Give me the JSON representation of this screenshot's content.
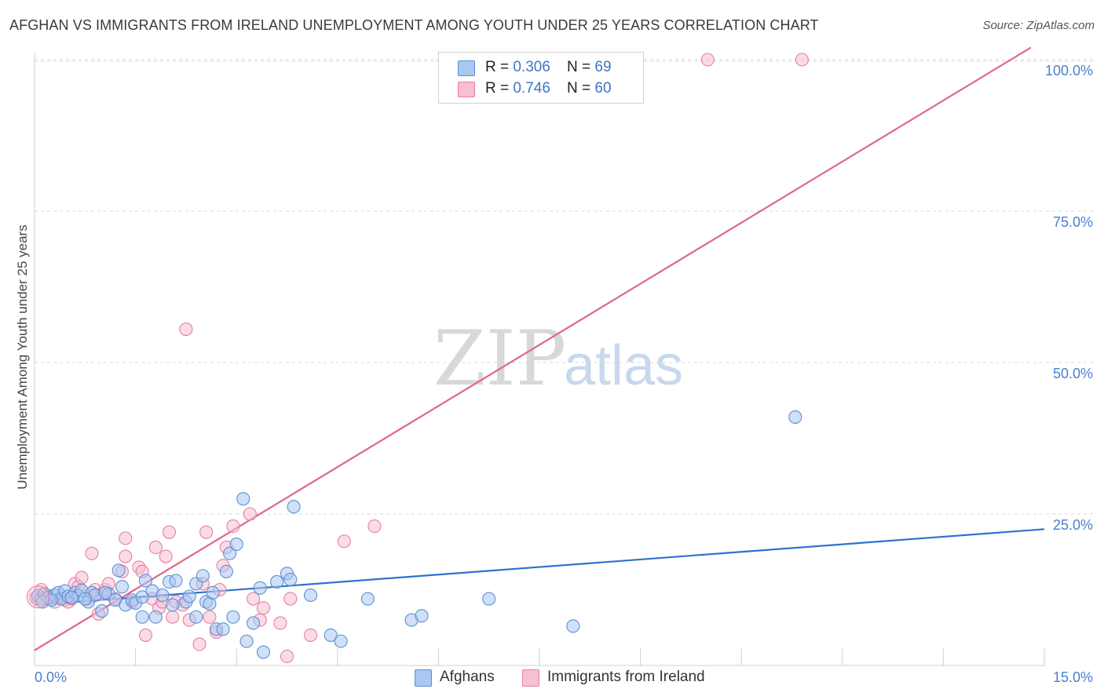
{
  "title": "AFGHAN VS IMMIGRANTS FROM IRELAND UNEMPLOYMENT AMONG YOUTH UNDER 25 YEARS CORRELATION CHART",
  "source": "Source: ZipAtlas.com",
  "watermark": {
    "part1": "ZIP",
    "part2": "atlas"
  },
  "legend": {
    "afghans": {
      "r_label": "R = ",
      "r_value": "0.306",
      "n_label": "N = ",
      "n_value": "69"
    },
    "ireland": {
      "r_label": "R = ",
      "r_value": "0.746",
      "n_label": "N = ",
      "n_value": "60"
    }
  },
  "bottom_legend": {
    "afghans": "Afghans",
    "ireland": "Immigrants from Ireland"
  },
  "colors": {
    "afghans_fill": "#a9c7f0",
    "afghans_stroke": "#5b8fd6",
    "afghans_line": "#2e72cf",
    "ireland_fill": "#f6bfd2",
    "ireland_stroke": "#e57fa3",
    "ireland_line": "#e0678f",
    "grid": "#d9d9d9",
    "tick_label": "#4a7fd0"
  },
  "chart_data": {
    "type": "scatter",
    "title": "AFGHAN VS IMMIGRANTS FROM IRELAND UNEMPLOYMENT AMONG YOUTH UNDER 25 YEARS CORRELATION CHART",
    "xlabel": "",
    "ylabel": "Unemployment Among Youth under 25 years",
    "xlim": [
      0,
      15
    ],
    "ylim": [
      0,
      102
    ],
    "x_tick_labels": [
      "0.0%",
      "15.0%"
    ],
    "y_ticks": [
      25,
      50,
      75,
      100
    ],
    "y_tick_labels": [
      "25.0%",
      "50.0%",
      "75.0%",
      "100.0%"
    ],
    "grid": true,
    "series": [
      {
        "name": "Afghans",
        "r": 0.306,
        "n": 69,
        "trend": {
          "x": [
            0,
            15
          ],
          "y": [
            10.0,
            22.5
          ]
        },
        "points": [
          [
            0.05,
            11.5
          ],
          [
            0.1,
            11.0
          ],
          [
            0.15,
            11.8
          ],
          [
            0.2,
            11.2
          ],
          [
            0.3,
            11.6
          ],
          [
            0.35,
            12.0
          ],
          [
            0.4,
            11.0
          ],
          [
            0.45,
            12.3
          ],
          [
            0.5,
            11.4
          ],
          [
            0.6,
            12.0
          ],
          [
            0.65,
            11.5
          ],
          [
            0.7,
            12.4
          ],
          [
            0.8,
            10.5
          ],
          [
            0.85,
            12.0
          ],
          [
            0.9,
            11.6
          ],
          [
            1.0,
            9.0
          ],
          [
            1.1,
            11.8
          ],
          [
            1.2,
            10.8
          ],
          [
            1.25,
            15.7
          ],
          [
            1.3,
            13.0
          ],
          [
            1.35,
            10.0
          ],
          [
            1.45,
            10.8
          ],
          [
            1.5,
            10.3
          ],
          [
            1.6,
            11.3
          ],
          [
            1.65,
            14.0
          ],
          [
            1.6,
            8.0
          ],
          [
            1.75,
            12.3
          ],
          [
            1.8,
            8.0
          ],
          [
            1.9,
            11.6
          ],
          [
            2.0,
            13.8
          ],
          [
            2.05,
            10.0
          ],
          [
            2.1,
            14.0
          ],
          [
            2.25,
            10.5
          ],
          [
            2.3,
            11.4
          ],
          [
            2.4,
            13.5
          ],
          [
            2.4,
            8.0
          ],
          [
            2.5,
            14.8
          ],
          [
            2.55,
            10.5
          ],
          [
            2.6,
            10.2
          ],
          [
            2.65,
            12.0
          ],
          [
            2.7,
            6.0
          ],
          [
            2.8,
            6.0
          ],
          [
            2.85,
            15.5
          ],
          [
            2.9,
            18.5
          ],
          [
            3.0,
            20.0
          ],
          [
            2.95,
            8.0
          ],
          [
            3.1,
            27.5
          ],
          [
            3.15,
            4.0
          ],
          [
            3.25,
            7.0
          ],
          [
            3.35,
            12.8
          ],
          [
            3.4,
            2.2
          ],
          [
            3.6,
            13.8
          ],
          [
            3.75,
            15.2
          ],
          [
            3.8,
            14.2
          ],
          [
            3.85,
            26.2
          ],
          [
            4.1,
            11.6
          ],
          [
            4.4,
            5.0
          ],
          [
            4.55,
            4.0
          ],
          [
            4.95,
            11.0
          ],
          [
            5.6,
            7.5
          ],
          [
            5.75,
            8.2
          ],
          [
            6.75,
            11.0
          ],
          [
            8.0,
            6.5
          ],
          [
            11.3,
            41.0
          ],
          [
            0.12,
            10.5
          ],
          [
            0.25,
            10.8
          ],
          [
            0.55,
            11.2
          ],
          [
            0.75,
            11.0
          ],
          [
            1.05,
            12.0
          ]
        ]
      },
      {
        "name": "Immigrants from Ireland",
        "r": 0.746,
        "n": 60,
        "trend": {
          "x": [
            0,
            14.8
          ],
          "y": [
            2.5,
            102
          ]
        },
        "points": [
          [
            0.05,
            11.0
          ],
          [
            0.1,
            12.5
          ],
          [
            0.15,
            11.0
          ],
          [
            0.2,
            11.5
          ],
          [
            0.3,
            10.5
          ],
          [
            0.4,
            11.5
          ],
          [
            0.45,
            10.8
          ],
          [
            0.5,
            10.5
          ],
          [
            0.55,
            11.0
          ],
          [
            0.6,
            13.5
          ],
          [
            0.65,
            13.0
          ],
          [
            0.7,
            14.5
          ],
          [
            0.8,
            11.0
          ],
          [
            0.85,
            18.5
          ],
          [
            0.9,
            12.5
          ],
          [
            0.95,
            8.5
          ],
          [
            1.0,
            11.8
          ],
          [
            1.05,
            12.5
          ],
          [
            1.1,
            13.5
          ],
          [
            1.2,
            11.0
          ],
          [
            1.3,
            15.5
          ],
          [
            1.35,
            18.0
          ],
          [
            1.35,
            21.0
          ],
          [
            1.45,
            10.5
          ],
          [
            1.55,
            16.2
          ],
          [
            1.6,
            15.5
          ],
          [
            1.65,
            5.0
          ],
          [
            1.75,
            11.0
          ],
          [
            1.8,
            19.5
          ],
          [
            1.85,
            9.5
          ],
          [
            1.9,
            10.5
          ],
          [
            1.95,
            18.0
          ],
          [
            2.0,
            22.0
          ],
          [
            2.05,
            8.0
          ],
          [
            2.1,
            10.5
          ],
          [
            2.2,
            10.0
          ],
          [
            2.3,
            7.5
          ],
          [
            2.45,
            3.5
          ],
          [
            2.5,
            13.5
          ],
          [
            2.55,
            22.0
          ],
          [
            2.6,
            8.0
          ],
          [
            2.7,
            5.5
          ],
          [
            2.75,
            12.5
          ],
          [
            2.8,
            16.5
          ],
          [
            2.85,
            19.5
          ],
          [
            2.95,
            23.0
          ],
          [
            3.2,
            25.0
          ],
          [
            3.25,
            11.0
          ],
          [
            3.35,
            7.5
          ],
          [
            3.4,
            9.5
          ],
          [
            3.65,
            7.0
          ],
          [
            3.75,
            1.5
          ],
          [
            3.8,
            11.0
          ],
          [
            4.1,
            5.0
          ],
          [
            4.6,
            20.5
          ],
          [
            5.05,
            23.0
          ],
          [
            2.25,
            55.5
          ],
          [
            10.0,
            100.0
          ],
          [
            11.4,
            100.0
          ],
          [
            0.02,
            11.2
          ]
        ]
      }
    ]
  }
}
